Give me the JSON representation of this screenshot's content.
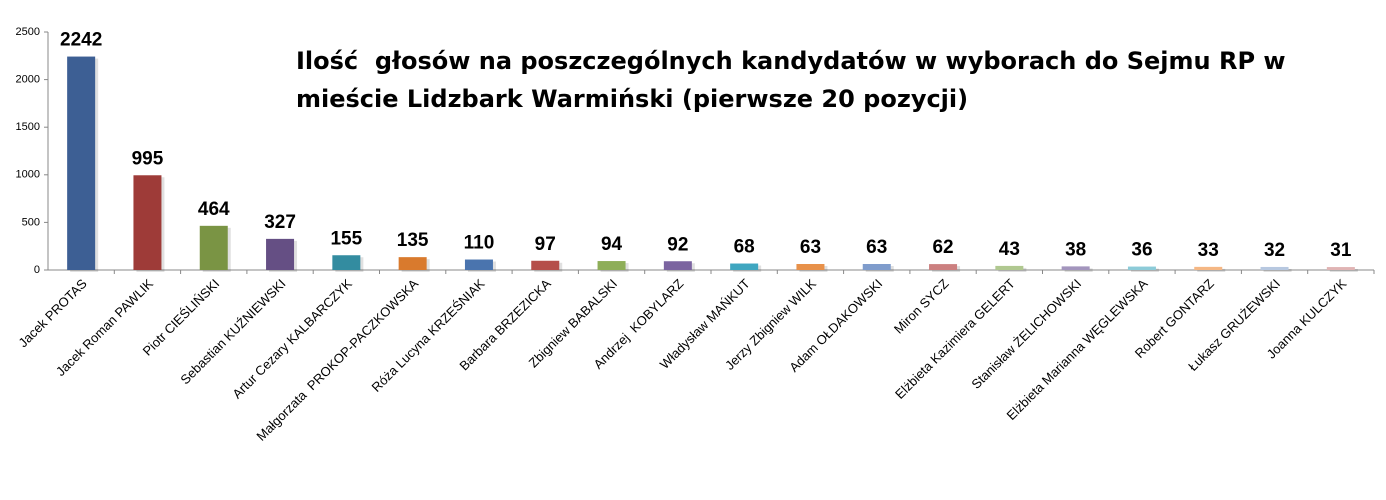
{
  "chart_data": {
    "type": "bar",
    "title": "Ilość  głosów na poszczególnych kandydatów w wyborach do Sejmu RP w mieście Lidzbark Warmiński (pierwsze 20 pozycji)",
    "categories": [
      "Jacek PROTAS",
      "Jacek Roman PAWLIK",
      "Piotr CIEŚLIŃSKI",
      "Sebastian KUŹNIEWSKI",
      "Artur Cezary KALBARCZYK",
      "Małgorzata  PROKOP-PACZKOWSKA",
      "Róża Lucyna KRZEŚNIAK",
      "Barbara BRZEZICKA",
      "Zbigniew BABALSKI",
      "Andrzej  KOBYLARZ",
      "Władysław MAŃKUT",
      "Jerzy Zbigniew WILK",
      "Adam OŁDAKOWSKI",
      "Miron SYCZ",
      "Elżbieta Kazimiera GELERT",
      "Stanisław ŻELICHOWSKI",
      "Elżbieta Marianna WĘGLEWSKA",
      "Robert GONTARZ",
      "Łukasz GRUŻEWSKI",
      "Joanna KULCZYK"
    ],
    "values": [
      2242,
      995,
      464,
      327,
      155,
      135,
      110,
      97,
      94,
      92,
      68,
      63,
      63,
      62,
      43,
      38,
      36,
      33,
      32,
      31
    ],
    "colors": [
      "#3d5f94",
      "#9e3b38",
      "#7a9444",
      "#654f84",
      "#338ca0",
      "#d97a2d",
      "#4a74ae",
      "#b54f4a",
      "#8eae58",
      "#7b64a0",
      "#3fa6c0",
      "#e8914a",
      "#7f9ccc",
      "#cc8080",
      "#b0c890",
      "#a395bd",
      "#8ccbd8",
      "#f5b784",
      "#b7c8e0",
      "#e0b4b4"
    ],
    "ylim": [
      0,
      2500
    ],
    "yticks": [
      0,
      500,
      1000,
      1500,
      2000,
      2500
    ],
    "grid": false
  }
}
